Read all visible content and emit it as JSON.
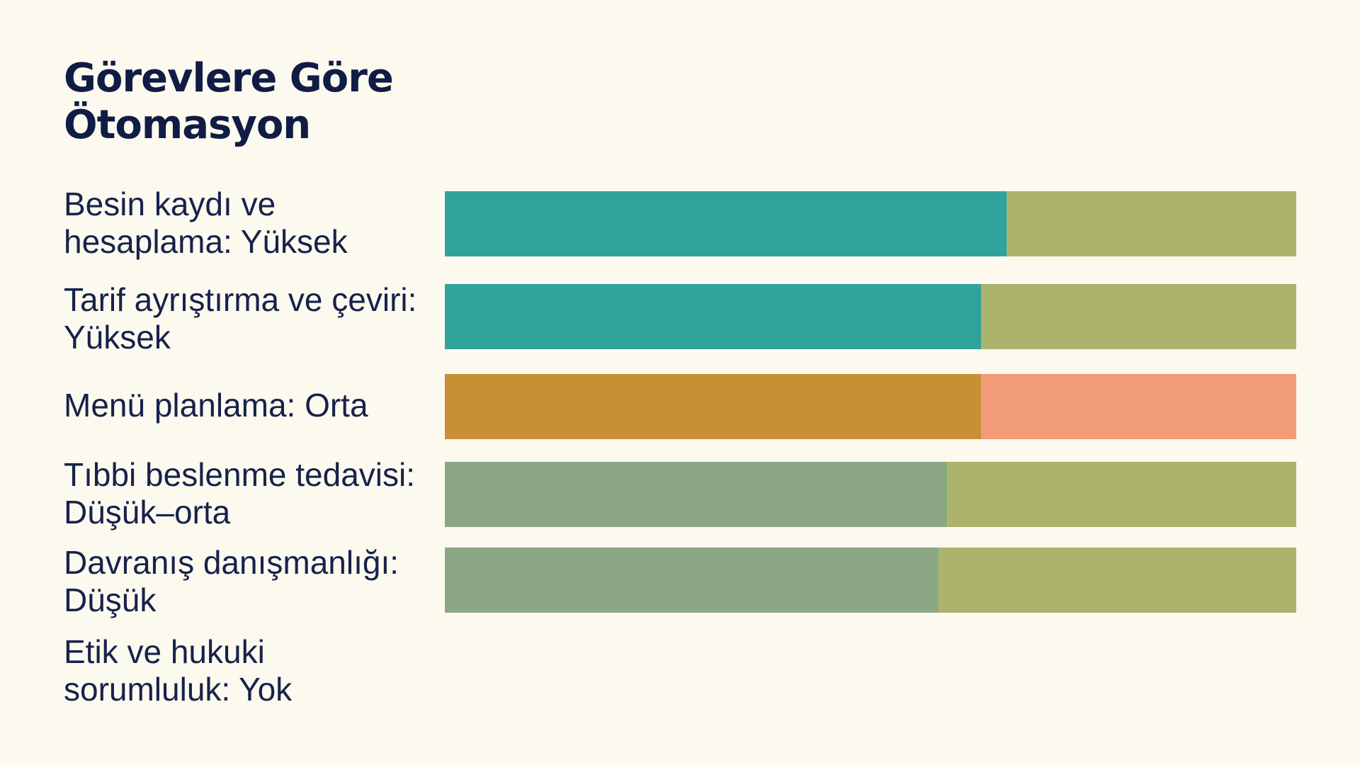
{
  "title": "Görevlere Göre Ötomasyon",
  "chart_data": {
    "type": "bar",
    "stacked": true,
    "orientation": "horizontal",
    "title": "Görevlere Göre Ötomasyon",
    "xlim": [
      0,
      100
    ],
    "grid": false,
    "legend": "none",
    "categories": [
      "Besin kaydı ve hesaplama: Yüksek",
      "Tarif ayrıştırma ve çeviri: Yüksek",
      "Menü planlama: Orta",
      "Tıbbi beslenme tedavisi: Düşük–orta",
      "Davranış danışmanlığı: Düşük",
      "Etik ve hukuki sorumluluk: Yok"
    ],
    "series": [
      {
        "values": [
          66,
          63,
          63,
          59,
          58,
          0
        ],
        "colors": [
          "#30a29c",
          "#30a29c",
          "#c98f34",
          "#8ba783",
          "#8ba783",
          null
        ]
      },
      {
        "values": [
          34,
          37,
          37,
          41,
          42,
          0
        ],
        "colors": [
          "#acb36c",
          "#acb36c",
          "#f19b78",
          "#acb36c",
          "#acb36c",
          null
        ]
      }
    ]
  }
}
